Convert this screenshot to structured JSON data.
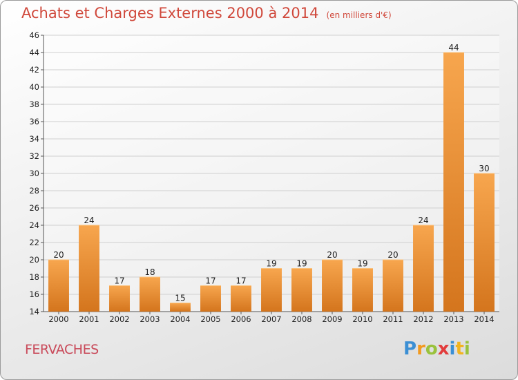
{
  "title": "Achats et Charges Externes 2000 à 2014",
  "unit": "(en milliers d'€)",
  "commune": "FERVACHES",
  "brand": {
    "text": "Proxiti",
    "letters": [
      {
        "ch": "P",
        "color": "#3b8fd4"
      },
      {
        "ch": "r",
        "color": "#f29a1f"
      },
      {
        "ch": "o",
        "color": "#9ac23c"
      },
      {
        "ch": "x",
        "color": "#e23c3c"
      },
      {
        "ch": "i",
        "color": "#3b8fd4"
      },
      {
        "ch": "t",
        "color": "#f2b41f"
      },
      {
        "ch": "i",
        "color": "#9ac23c"
      }
    ]
  },
  "colors": {
    "bar_light": "#f7a64e",
    "bar_dark": "#d4751d",
    "title": "#d0483b",
    "grid": "#cfcfcf"
  },
  "chart_data": {
    "type": "bar",
    "title": "Achats et Charges Externes 2000 à 2014",
    "subtitle": "(en milliers d'€)",
    "categories": [
      "2000",
      "2001",
      "2002",
      "2003",
      "2004",
      "2005",
      "2006",
      "2007",
      "2008",
      "2009",
      "2010",
      "2011",
      "2012",
      "2013",
      "2014"
    ],
    "values": [
      20,
      24,
      17,
      18,
      15,
      17,
      17,
      19,
      19,
      20,
      19,
      20,
      24,
      44,
      30
    ],
    "ylim": [
      14,
      46
    ],
    "yticks": [
      14,
      16,
      18,
      20,
      22,
      24,
      26,
      28,
      30,
      32,
      34,
      36,
      38,
      40,
      42,
      44,
      46
    ],
    "grid": true,
    "xlabel": "",
    "ylabel": ""
  }
}
